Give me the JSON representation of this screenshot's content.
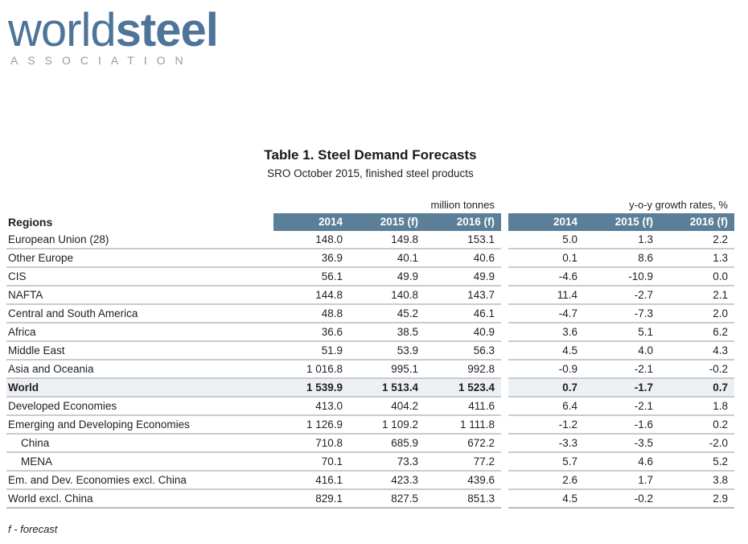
{
  "logo": {
    "part1": "world",
    "part2": "steel",
    "subtitle": "ASSOCIATION"
  },
  "title": "Table 1. Steel Demand Forecasts",
  "subtitle": "SRO October 2015, finished steel products",
  "table": {
    "regions_header": "Regions",
    "group1_label": "million tonnes",
    "group2_label": "y-o-y growth rates, %",
    "col_headers": [
      "2014",
      "2015 (f)",
      "2016 (f)"
    ],
    "rows": [
      {
        "region": "European Union (28)",
        "tonnes": [
          "148.0",
          "149.8",
          "153.1"
        ],
        "growth": [
          "5.0",
          "1.3",
          "2.2"
        ],
        "bold": false,
        "indent": false,
        "highlight": false
      },
      {
        "region": "Other Europe",
        "tonnes": [
          "36.9",
          "40.1",
          "40.6"
        ],
        "growth": [
          "0.1",
          "8.6",
          "1.3"
        ],
        "bold": false,
        "indent": false,
        "highlight": false
      },
      {
        "region": "CIS",
        "tonnes": [
          "56.1",
          "49.9",
          "49.9"
        ],
        "growth": [
          "-4.6",
          "-10.9",
          "0.0"
        ],
        "bold": false,
        "indent": false,
        "highlight": false
      },
      {
        "region": "NAFTA",
        "tonnes": [
          "144.8",
          "140.8",
          "143.7"
        ],
        "growth": [
          "11.4",
          "-2.7",
          "2.1"
        ],
        "bold": false,
        "indent": false,
        "highlight": false
      },
      {
        "region": "Central and South America",
        "tonnes": [
          "48.8",
          "45.2",
          "46.1"
        ],
        "growth": [
          "-4.7",
          "-7.3",
          "2.0"
        ],
        "bold": false,
        "indent": false,
        "highlight": false
      },
      {
        "region": "Africa",
        "tonnes": [
          "36.6",
          "38.5",
          "40.9"
        ],
        "growth": [
          "3.6",
          "5.1",
          "6.2"
        ],
        "bold": false,
        "indent": false,
        "highlight": false
      },
      {
        "region": "Middle East",
        "tonnes": [
          "51.9",
          "53.9",
          "56.3"
        ],
        "growth": [
          "4.5",
          "4.0",
          "4.3"
        ],
        "bold": false,
        "indent": false,
        "highlight": false
      },
      {
        "region": "Asia and Oceania",
        "tonnes": [
          "1 016.8",
          "995.1",
          "992.8"
        ],
        "growth": [
          "-0.9",
          "-2.1",
          "-0.2"
        ],
        "bold": false,
        "indent": false,
        "highlight": false
      },
      {
        "region": "World",
        "tonnes": [
          "1 539.9",
          "1 513.4",
          "1 523.4"
        ],
        "growth": [
          "0.7",
          "-1.7",
          "0.7"
        ],
        "bold": true,
        "indent": false,
        "highlight": true
      },
      {
        "region": "Developed Economies",
        "tonnes": [
          "413.0",
          "404.2",
          "411.6"
        ],
        "growth": [
          "6.4",
          "-2.1",
          "1.8"
        ],
        "bold": false,
        "indent": false,
        "highlight": false
      },
      {
        "region": "Emerging and Developing Economies",
        "tonnes": [
          "1 126.9",
          "1 109.2",
          "1 111.8"
        ],
        "growth": [
          "-1.2",
          "-1.6",
          "0.2"
        ],
        "bold": false,
        "indent": false,
        "highlight": false
      },
      {
        "region": "China",
        "tonnes": [
          "710.8",
          "685.9",
          "672.2"
        ],
        "growth": [
          "-3.3",
          "-3.5",
          "-2.0"
        ],
        "bold": false,
        "indent": true,
        "highlight": false
      },
      {
        "region": "MENA",
        "tonnes": [
          "70.1",
          "73.3",
          "77.2"
        ],
        "growth": [
          "5.7",
          "4.6",
          "5.2"
        ],
        "bold": false,
        "indent": true,
        "highlight": false
      },
      {
        "region": "Em. and Dev. Economies excl. China",
        "tonnes": [
          "416.1",
          "423.3",
          "439.6"
        ],
        "growth": [
          "2.6",
          "1.7",
          "3.8"
        ],
        "bold": false,
        "indent": false,
        "highlight": false
      },
      {
        "region": "World excl. China",
        "tonnes": [
          "829.1",
          "827.5",
          "851.3"
        ],
        "growth": [
          "4.5",
          "-0.2",
          "2.9"
        ],
        "bold": false,
        "indent": false,
        "highlight": false
      }
    ]
  },
  "footnote": "f - forecast",
  "colors": {
    "logo_blue": "#4e7499",
    "header_bar": "#5b7f98",
    "row_border": "#c6ccd2",
    "highlight_row": "#edf0f3"
  }
}
